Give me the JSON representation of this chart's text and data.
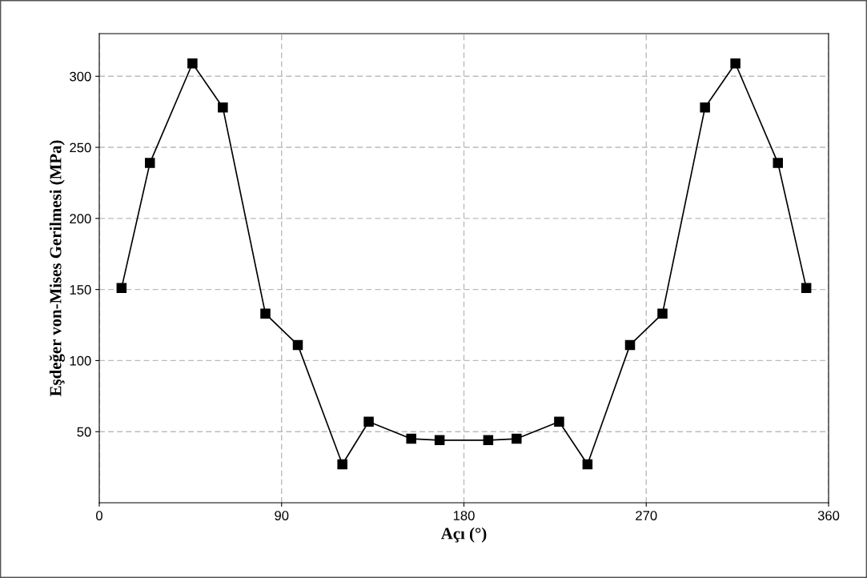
{
  "chart_data": {
    "type": "line",
    "xlabel": "Açı (°)",
    "ylabel": "Eşdeğer von-Mises Gerilmesi (MPa)",
    "x": [
      11,
      25,
      46,
      61,
      82,
      98,
      120,
      133,
      154,
      168,
      192,
      206,
      227,
      241,
      262,
      278,
      299,
      314,
      335,
      349
    ],
    "series": [
      {
        "color": "#000000",
        "values": [
          151,
          239,
          309,
          278,
          133,
          111,
          27,
          57,
          45,
          44,
          44,
          45,
          57,
          27,
          111,
          133,
          278,
          309,
          239,
          151
        ]
      }
    ],
    "xlim": [
      0,
      360
    ],
    "xticks": [
      0,
      90,
      180,
      270,
      360
    ],
    "ylim": [
      0,
      330
    ],
    "yticks": [
      50,
      100,
      150,
      200,
      250,
      300
    ],
    "grid": true,
    "marker": "square",
    "line_style": "solid"
  }
}
